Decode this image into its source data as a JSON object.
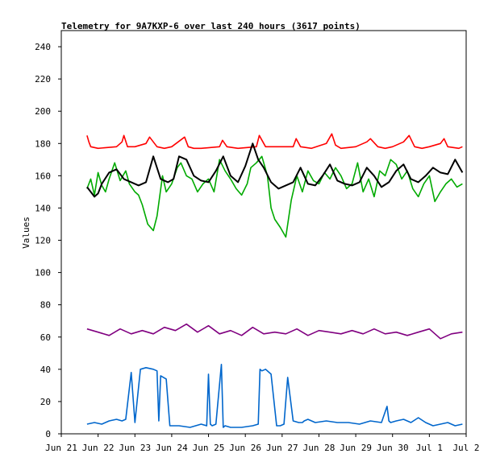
{
  "chart_data": {
    "type": "line",
    "title": "Telemetry for 9A7KXP-6 over last 240 hours (3617 points)",
    "xlabel": "",
    "ylabel": "Values",
    "ylim": [
      0,
      250
    ],
    "yticks": [
      0,
      20,
      40,
      60,
      80,
      100,
      120,
      140,
      160,
      180,
      200,
      220,
      240
    ],
    "xlim": [
      0,
      11
    ],
    "xtick_labels": [
      "Jun 21",
      "Jun 22",
      "Jun 23",
      "Jun 24",
      "Jun 25",
      "Jun 26",
      "Jun 27",
      "Jun 28",
      "Jun 29",
      "Jun 30",
      "Jul 1",
      "Jul 2"
    ],
    "grid": false,
    "legend": "none",
    "series": [
      {
        "color": "#ff0000",
        "x": [
          0.7,
          0.75,
          0.8,
          1.0,
          1.5,
          1.65,
          1.7,
          1.8,
          2.0,
          2.3,
          2.4,
          2.6,
          2.8,
          3.0,
          3.35,
          3.45,
          3.6,
          3.8,
          4.3,
          4.38,
          4.5,
          4.8,
          5.3,
          5.38,
          5.55,
          5.8,
          6.3,
          6.38,
          6.5,
          6.8,
          7.2,
          7.35,
          7.45,
          7.6,
          8.0,
          8.3,
          8.4,
          8.6,
          8.8,
          9.0,
          9.3,
          9.45,
          9.6,
          9.8,
          10.0,
          10.3,
          10.4,
          10.5,
          10.8,
          10.9
        ],
        "values": [
          185,
          181,
          178,
          177,
          178,
          181,
          185,
          178,
          178,
          180,
          184,
          178,
          177,
          178,
          184,
          178,
          177,
          177,
          178,
          182,
          178,
          177,
          178,
          185,
          178,
          178,
          178,
          183,
          178,
          177,
          180,
          186,
          179,
          177,
          178,
          181,
          183,
          178,
          177,
          178,
          181,
          185,
          178,
          177,
          178,
          180,
          183,
          178,
          177,
          178
        ]
      },
      {
        "color": "#00aa00",
        "x": [
          0.7,
          0.8,
          0.9,
          1.0,
          1.1,
          1.2,
          1.3,
          1.45,
          1.6,
          1.75,
          1.85,
          2.0,
          2.1,
          2.2,
          2.35,
          2.5,
          2.6,
          2.75,
          2.85,
          3.0,
          3.15,
          3.25,
          3.4,
          3.55,
          3.7,
          3.85,
          4.0,
          4.15,
          4.3,
          4.45,
          4.6,
          4.75,
          4.9,
          5.05,
          5.15,
          5.3,
          5.45,
          5.6,
          5.7,
          5.8,
          5.95,
          6.1,
          6.25,
          6.4,
          6.55,
          6.7,
          6.85,
          7.0,
          7.15,
          7.3,
          7.45,
          7.6,
          7.75,
          7.9,
          8.05,
          8.2,
          8.35,
          8.5,
          8.65,
          8.8,
          8.95,
          9.1,
          9.25,
          9.4,
          9.55,
          9.7,
          9.85,
          10.0,
          10.15,
          10.3,
          10.45,
          10.6,
          10.75,
          10.9
        ],
        "values": [
          152,
          158,
          148,
          162,
          154,
          150,
          158,
          168,
          157,
          163,
          155,
          150,
          148,
          142,
          130,
          126,
          135,
          160,
          150,
          155,
          165,
          168,
          160,
          158,
          150,
          155,
          158,
          150,
          170,
          163,
          158,
          152,
          148,
          155,
          165,
          168,
          172,
          160,
          140,
          133,
          128,
          122,
          145,
          160,
          150,
          163,
          157,
          155,
          162,
          158,
          165,
          160,
          152,
          155,
          168,
          150,
          158,
          147,
          163,
          160,
          170,
          167,
          158,
          163,
          152,
          147,
          155,
          160,
          144,
          150,
          155,
          158,
          153,
          155
        ]
      },
      {
        "color": "#000000",
        "x": [
          0.7,
          0.8,
          0.9,
          1.0,
          1.1,
          1.3,
          1.5,
          1.7,
          1.9,
          2.1,
          2.3,
          2.5,
          2.7,
          2.9,
          3.05,
          3.2,
          3.4,
          3.6,
          3.8,
          4.0,
          4.2,
          4.4,
          4.6,
          4.8,
          5.0,
          5.2,
          5.35,
          5.5,
          5.7,
          5.9,
          6.1,
          6.3,
          6.5,
          6.7,
          6.9,
          7.1,
          7.3,
          7.5,
          7.7,
          7.9,
          8.1,
          8.3,
          8.5,
          8.7,
          8.9,
          9.1,
          9.3,
          9.5,
          9.7,
          9.9,
          10.1,
          10.3,
          10.5,
          10.7,
          10.9
        ],
        "values": [
          153,
          150,
          147,
          149,
          155,
          162,
          164,
          158,
          156,
          154,
          156,
          172,
          158,
          156,
          158,
          172,
          170,
          160,
          157,
          156,
          163,
          172,
          160,
          156,
          166,
          180,
          170,
          165,
          156,
          152,
          154,
          156,
          165,
          155,
          154,
          160,
          167,
          157,
          155,
          154,
          156,
          165,
          160,
          153,
          156,
          163,
          167,
          158,
          156,
          160,
          165,
          162,
          161,
          170,
          162
        ]
      },
      {
        "color": "#800080",
        "x": [
          0.7,
          1.0,
          1.3,
          1.6,
          1.9,
          2.2,
          2.5,
          2.8,
          3.1,
          3.4,
          3.7,
          4.0,
          4.3,
          4.6,
          4.9,
          5.2,
          5.5,
          5.8,
          6.1,
          6.4,
          6.7,
          7.0,
          7.3,
          7.6,
          7.9,
          8.2,
          8.5,
          8.8,
          9.1,
          9.4,
          9.7,
          10.0,
          10.3,
          10.6,
          10.9
        ],
        "values": [
          65,
          63,
          61,
          65,
          62,
          64,
          62,
          66,
          64,
          68,
          63,
          67,
          62,
          64,
          61,
          66,
          62,
          63,
          62,
          65,
          61,
          64,
          63,
          62,
          64,
          62,
          65,
          62,
          63,
          61,
          63,
          65,
          59,
          62,
          63
        ]
      },
      {
        "color": "#0066cc",
        "x": [
          0.7,
          0.9,
          1.1,
          1.3,
          1.5,
          1.65,
          1.75,
          1.9,
          2.0,
          2.15,
          2.3,
          2.5,
          2.6,
          2.65,
          2.7,
          2.85,
          2.95,
          3.05,
          3.2,
          3.5,
          3.8,
          3.95,
          4.0,
          4.05,
          4.1,
          4.2,
          4.35,
          4.4,
          4.45,
          4.6,
          4.9,
          5.2,
          5.35,
          5.4,
          5.45,
          5.55,
          5.7,
          5.85,
          5.95,
          6.05,
          6.15,
          6.3,
          6.45,
          6.55,
          6.6,
          6.7,
          6.9,
          7.2,
          7.5,
          7.8,
          8.1,
          8.4,
          8.7,
          8.85,
          8.9,
          8.95,
          9.1,
          9.3,
          9.5,
          9.7,
          9.9,
          10.1,
          10.3,
          10.5,
          10.7,
          10.9
        ],
        "values": [
          6,
          7,
          6,
          8,
          9,
          8,
          9,
          38,
          7,
          40,
          41,
          40,
          39,
          8,
          36,
          34,
          5,
          5,
          5,
          4,
          6,
          5,
          37,
          6,
          5,
          6,
          43,
          4,
          5,
          4,
          4,
          5,
          6,
          40,
          39,
          40,
          37,
          5,
          5,
          6,
          35,
          8,
          7,
          7,
          8,
          9,
          7,
          8,
          7,
          7,
          6,
          8,
          7,
          17,
          8,
          7,
          8,
          9,
          7,
          10,
          7,
          5,
          6,
          7,
          5,
          6
        ]
      }
    ]
  }
}
